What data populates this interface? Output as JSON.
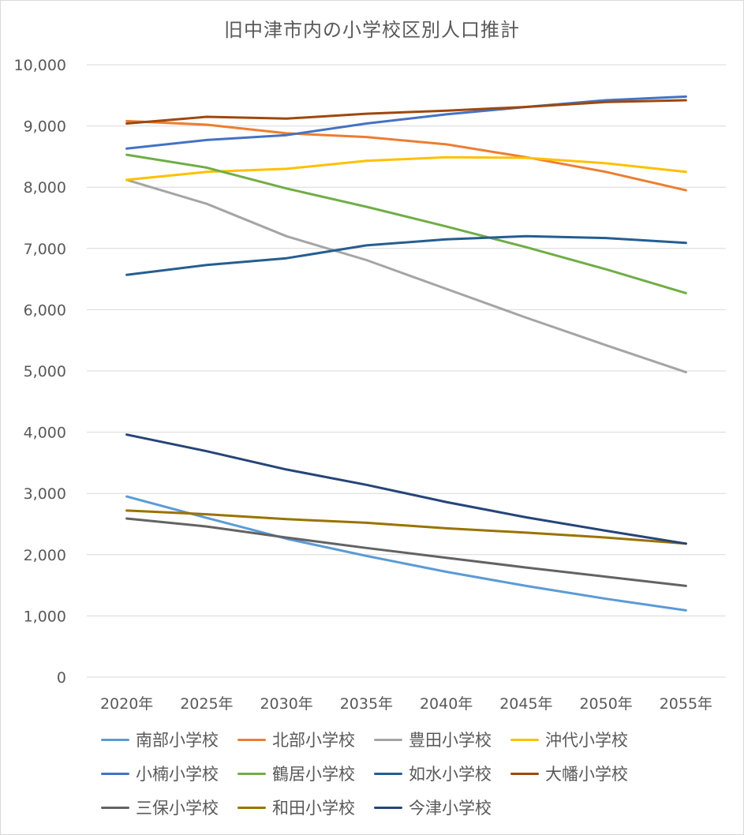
{
  "chart_data": {
    "type": "line",
    "title": "旧中津市内の小学校区別人口推計",
    "xlabel": "",
    "ylabel": "",
    "ylim": [
      0,
      10000
    ],
    "y_ticks": [
      "0",
      "1,000",
      "2,000",
      "3,000",
      "4,000",
      "5,000",
      "6,000",
      "7,000",
      "8,000",
      "9,000",
      "10,000"
    ],
    "gridlines": true,
    "legend_position": "bottom",
    "categories": [
      "2020年",
      "2025年",
      "2030年",
      "2035年",
      "2040年",
      "2045年",
      "2050年",
      "2055年"
    ],
    "series": [
      {
        "name": "南部小学校",
        "color": "#5B9BD5",
        "values": [
          2950,
          2600,
          2260,
          1980,
          1720,
          1490,
          1280,
          1090
        ]
      },
      {
        "name": "北部小学校",
        "color": "#ED7D31",
        "values": [
          9080,
          9020,
          8880,
          8820,
          8700,
          8490,
          8250,
          7950
        ]
      },
      {
        "name": "豊田小学校",
        "color": "#A5A5A5",
        "values": [
          8120,
          7730,
          7200,
          6810,
          6340,
          5870,
          5420,
          4980
        ]
      },
      {
        "name": "沖代小学校",
        "color": "#FFC000",
        "values": [
          8120,
          8250,
          8300,
          8430,
          8490,
          8480,
          8390,
          8250
        ]
      },
      {
        "name": "小楠小学校",
        "color": "#4472C4",
        "values": [
          8630,
          8770,
          8850,
          9040,
          9190,
          9310,
          9420,
          9480
        ]
      },
      {
        "name": "鶴居小学校",
        "color": "#70AD47",
        "values": [
          8530,
          8320,
          7980,
          7680,
          7360,
          7020,
          6660,
          6270
        ]
      },
      {
        "name": "如水小学校",
        "color": "#255E91",
        "values": [
          6570,
          6730,
          6840,
          7050,
          7150,
          7200,
          7170,
          7090
        ]
      },
      {
        "name": "大幡小学校",
        "color": "#9E480E",
        "values": [
          9040,
          9150,
          9120,
          9200,
          9250,
          9310,
          9390,
          9420
        ]
      },
      {
        "name": "三保小学校",
        "color": "#636363",
        "values": [
          2590,
          2460,
          2280,
          2110,
          1950,
          1790,
          1640,
          1490
        ]
      },
      {
        "name": "和田小学校",
        "color": "#997300",
        "values": [
          2720,
          2660,
          2580,
          2520,
          2430,
          2360,
          2280,
          2180
        ]
      },
      {
        "name": "今津小学校",
        "color": "#264478",
        "values": [
          3960,
          3690,
          3390,
          3140,
          2860,
          2610,
          2390,
          2180
        ]
      }
    ]
  }
}
